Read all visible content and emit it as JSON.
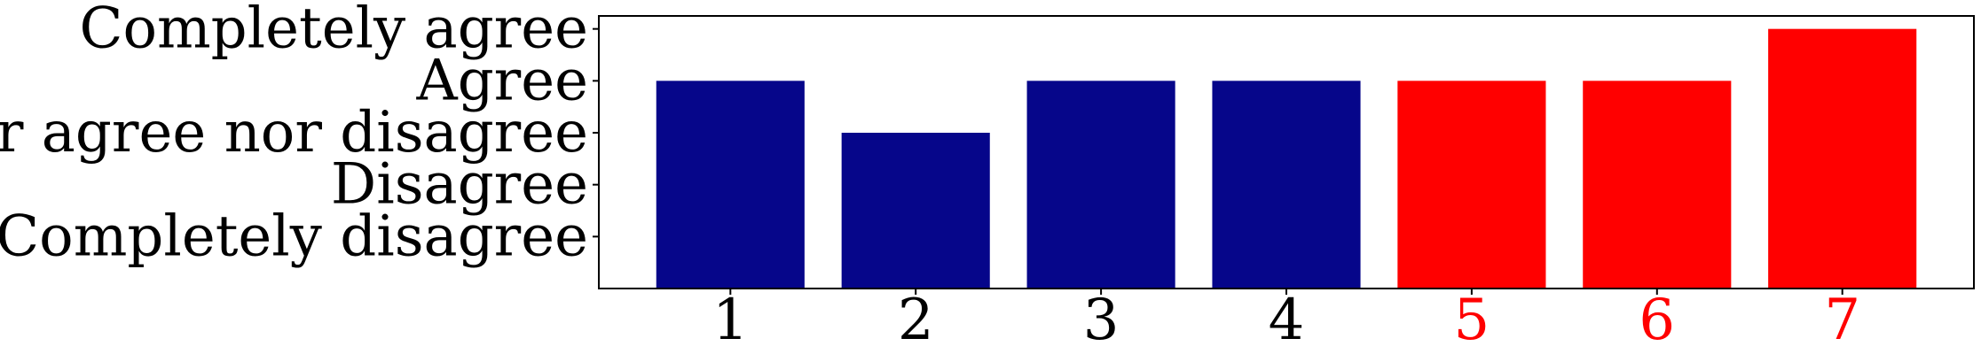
{
  "chart_data": {
    "type": "bar",
    "categories": [
      "1",
      "2",
      "3",
      "4",
      "5",
      "6",
      "7"
    ],
    "values": [
      4,
      3,
      4,
      4,
      4,
      4,
      5
    ],
    "bar_colors": [
      "#06068a",
      "#06068a",
      "#06068a",
      "#06068a",
      "#ff0000",
      "#ff0000",
      "#ff0000"
    ],
    "category_label_colors": [
      "#000000",
      "#000000",
      "#000000",
      "#000000",
      "#ff0000",
      "#ff0000",
      "#ff0000"
    ],
    "y_ticks": [
      1,
      2,
      3,
      4,
      5
    ],
    "y_tick_labels": [
      "Completely disagree",
      "Disagree",
      "Neither agree nor disagree",
      "Agree",
      "Completely agree"
    ],
    "ylim": [
      0,
      5.25
    ],
    "title": "",
    "xlabel": "",
    "ylabel": "",
    "grid": false,
    "legend": "none"
  }
}
